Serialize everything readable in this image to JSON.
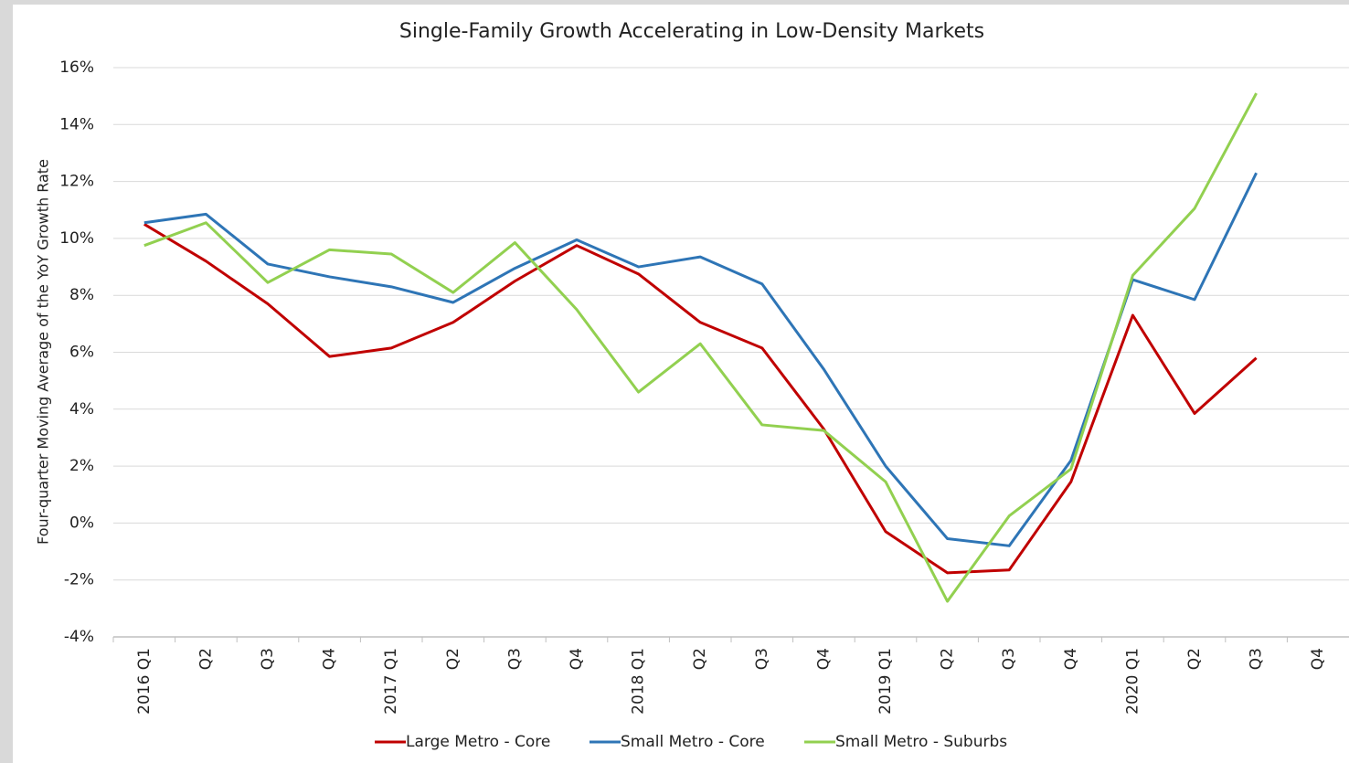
{
  "chart_data": {
    "type": "line",
    "title": "Single-Family Growth Accelerating in Low-Density Markets",
    "y_label": "Four-quarter Moving Average of the YoY Growth Rate",
    "categories": [
      "2016 Q1",
      "Q2",
      "Q3",
      "Q4",
      "2017 Q1",
      "Q2",
      "Q3",
      "Q4",
      "2018 Q1",
      "Q2",
      "Q3",
      "Q4",
      "2019 Q1",
      "Q2",
      "Q3",
      "Q4",
      "2020 Q1",
      "Q2",
      "Q3",
      "Q4"
    ],
    "series": [
      {
        "name": "Large Metro - Core",
        "color": "#c00000",
        "values": [
          10.5,
          9.2,
          7.7,
          5.85,
          6.15,
          7.05,
          8.5,
          9.75,
          8.75,
          7.05,
          6.15,
          3.3,
          -0.3,
          -1.75,
          -1.65,
          1.45,
          7.3,
          3.85,
          5.8,
          null
        ]
      },
      {
        "name": "Small Metro - Core",
        "color": "#2e75b6",
        "values": [
          10.55,
          10.85,
          9.1,
          8.65,
          8.3,
          7.75,
          8.95,
          9.95,
          9.0,
          9.35,
          8.4,
          5.4,
          2.0,
          -0.55,
          -0.8,
          2.2,
          8.55,
          7.85,
          12.3,
          null
        ]
      },
      {
        "name": "Small Metro - Suburbs",
        "color": "#92d050",
        "values": [
          9.75,
          10.55,
          8.45,
          9.6,
          9.45,
          8.1,
          9.85,
          7.5,
          4.6,
          6.3,
          3.45,
          3.25,
          1.45,
          -2.75,
          0.25,
          1.9,
          8.7,
          11.05,
          15.1,
          null
        ]
      }
    ],
    "ylim": [
      -4,
      16
    ],
    "yticks": [
      {
        "value": -4,
        "label": "-4%"
      },
      {
        "value": -2,
        "label": "-2%"
      },
      {
        "value": 0,
        "label": "0%"
      },
      {
        "value": 2,
        "label": "2%"
      },
      {
        "value": 4,
        "label": "4%"
      },
      {
        "value": 6,
        "label": "6%"
      },
      {
        "value": 8,
        "label": "8%"
      },
      {
        "value": 10,
        "label": "10%"
      },
      {
        "value": 12,
        "label": "12%"
      },
      {
        "value": 14,
        "label": "14%"
      },
      {
        "value": 16,
        "label": "16%"
      }
    ],
    "grid": true,
    "legend": "bottom"
  }
}
